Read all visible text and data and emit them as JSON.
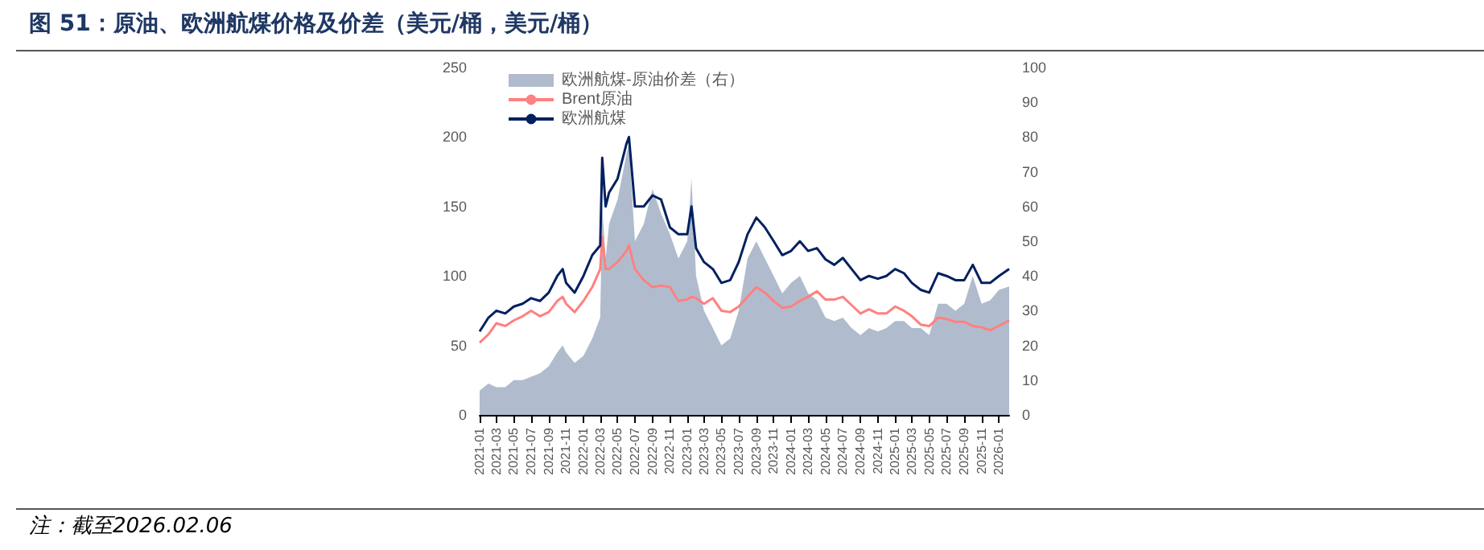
{
  "chart_data": {
    "type": "line",
    "title": "图 51：原油、欧洲航煤价格及价差（美元/桶，美元/桶）",
    "annotations": [
      "注：截至2026.02.06"
    ],
    "x": [
      "2021-01-01",
      "2021-02-01",
      "2021-03-01",
      "2021-04-01",
      "2021-05-01",
      "2021-06-01",
      "2021-07-01",
      "2021-08-01",
      "2021-09-01",
      "2021-10-01",
      "2021-10-20",
      "2021-11-01",
      "2021-12-01",
      "2022-01-01",
      "2022-02-01",
      "2022-03-01",
      "2022-03-08",
      "2022-03-20",
      "2022-04-01",
      "2022-05-01",
      "2022-06-01",
      "2022-06-10",
      "2022-07-01",
      "2022-08-01",
      "2022-09-01",
      "2022-10-01",
      "2022-11-01",
      "2022-12-01",
      "2023-01-01",
      "2023-01-16",
      "2023-02-01",
      "2023-03-01",
      "2023-04-01",
      "2023-05-01",
      "2023-06-01",
      "2023-07-01",
      "2023-08-01",
      "2023-09-01",
      "2023-10-01",
      "2023-11-01",
      "2023-12-01",
      "2024-01-01",
      "2024-02-01",
      "2024-03-01",
      "2024-04-01",
      "2024-05-01",
      "2024-06-01",
      "2024-07-01",
      "2024-08-01",
      "2024-09-01",
      "2024-10-01",
      "2024-11-01",
      "2024-12-01",
      "2025-01-01",
      "2025-02-01",
      "2025-03-01",
      "2025-04-01",
      "2025-05-01",
      "2025-06-01",
      "2025-07-01",
      "2025-08-01",
      "2025-09-01",
      "2025-10-01",
      "2025-11-01",
      "2025-12-01",
      "2026-01-01",
      "2026-02-06"
    ],
    "series": [
      {
        "name": "欧洲航煤-原油价差（右）",
        "type": "area",
        "axis": "y2",
        "color": "#b0bccd",
        "values": [
          7,
          9,
          8,
          8,
          10,
          10,
          11,
          12,
          14,
          18,
          20,
          18,
          15,
          17,
          22,
          28,
          60,
          45,
          55,
          62,
          75,
          78,
          50,
          55,
          65,
          58,
          52,
          45,
          50,
          68,
          40,
          30,
          25,
          20,
          22,
          30,
          45,
          50,
          45,
          40,
          35,
          38,
          40,
          35,
          33,
          28,
          27,
          28,
          25,
          23,
          25,
          24,
          25,
          27,
          27,
          25,
          25,
          23,
          32,
          32,
          30,
          32,
          40,
          32,
          33,
          36,
          37
        ]
      },
      {
        "name": "Brent原油",
        "color": "#ff8080",
        "values": [
          52,
          58,
          66,
          64,
          68,
          71,
          75,
          71,
          74,
          82,
          85,
          80,
          74,
          82,
          92,
          105,
          128,
          105,
          105,
          110,
          118,
          122,
          105,
          97,
          92,
          93,
          92,
          82,
          83,
          85,
          84,
          80,
          84,
          75,
          74,
          78,
          85,
          92,
          88,
          82,
          77,
          78,
          82,
          85,
          89,
          83,
          83,
          85,
          79,
          73,
          76,
          73,
          73,
          78,
          75,
          71,
          65,
          64,
          70,
          69,
          67,
          67,
          64,
          63,
          61,
          64,
          68
        ]
      },
      {
        "name": "欧洲航煤",
        "color": "#002060",
        "values": [
          60,
          70,
          75,
          73,
          78,
          80,
          84,
          82,
          88,
          100,
          105,
          95,
          88,
          100,
          115,
          122,
          185,
          150,
          160,
          170,
          195,
          200,
          150,
          150,
          158,
          155,
          135,
          130,
          130,
          150,
          120,
          110,
          105,
          95,
          97,
          110,
          130,
          142,
          135,
          125,
          115,
          118,
          125,
          118,
          120,
          112,
          108,
          113,
          105,
          97,
          100,
          98,
          100,
          105,
          102,
          95,
          90,
          88,
          102,
          100,
          97,
          97,
          108,
          95,
          95,
          100,
          105
        ]
      }
    ],
    "xlim": [
      "2021-01-01",
      "2026-02-06"
    ],
    "xticks": [
      "2021-01",
      "2021-03",
      "2021-05",
      "2021-07",
      "2021-09",
      "2021-11",
      "2022-01",
      "2022-03",
      "2022-05",
      "2022-07",
      "2022-09",
      "2022-11",
      "2023-01",
      "2023-03",
      "2023-05",
      "2023-07",
      "2023-09",
      "2023-11",
      "2024-01",
      "2024-03",
      "2024-05",
      "2024-07",
      "2024-09",
      "2024-11",
      "2025-01",
      "2025-03",
      "2025-05",
      "2025-07",
      "2025-09",
      "2025-11",
      "2026-01"
    ],
    "ylim": [
      0,
      250
    ],
    "yticks": [
      0,
      50,
      100,
      150,
      200,
      250
    ],
    "y2lim": [
      0,
      100
    ],
    "y2ticks": [
      0,
      10,
      20,
      30,
      40,
      50,
      60,
      70,
      80,
      90,
      100
    ],
    "legend": "top left",
    "grid": false,
    "marker": "none",
    "line_style": "solid"
  }
}
